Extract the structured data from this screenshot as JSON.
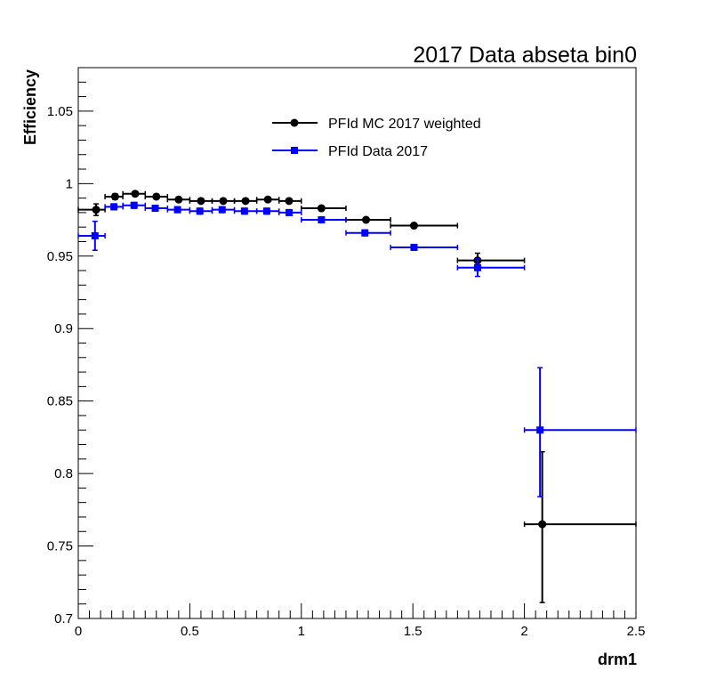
{
  "chart_data": {
    "type": "scatter",
    "title": "2017 Data abseta bin0",
    "xlabel": "drm1",
    "ylabel": "Efficiency",
    "xlim": [
      0,
      2.5
    ],
    "ylim": [
      0.7,
      1.08
    ],
    "x_ticks": [
      "0",
      "0.5",
      "1",
      "1.5",
      "2",
      "2.5"
    ],
    "y_ticks": [
      "0.7",
      "0.75",
      "0.8",
      "0.85",
      "0.9",
      "0.95",
      "1",
      "1.05"
    ],
    "x_tick_values": [
      0,
      0.5,
      1,
      1.5,
      2,
      2.5
    ],
    "y_tick_values": [
      0.7,
      0.75,
      0.8,
      0.85,
      0.9,
      0.95,
      1.0,
      1.05
    ],
    "legend_position": "top-center",
    "grid": false,
    "series": [
      {
        "name": "PFId MC 2017 weighted",
        "color": "#000000",
        "marker": "circle",
        "points": [
          {
            "x": 0.08,
            "xlo": 0.0,
            "xhi": 0.12,
            "y": 0.982,
            "ylo": 0.978,
            "yhi": 0.986
          },
          {
            "x": 0.165,
            "xlo": 0.12,
            "xhi": 0.2,
            "y": 0.991,
            "ylo": 0.989,
            "yhi": 0.993
          },
          {
            "x": 0.255,
            "xlo": 0.2,
            "xhi": 0.3,
            "y": 0.993,
            "ylo": 0.992,
            "yhi": 0.994
          },
          {
            "x": 0.35,
            "xlo": 0.3,
            "xhi": 0.4,
            "y": 0.991,
            "ylo": 0.99,
            "yhi": 0.992
          },
          {
            "x": 0.45,
            "xlo": 0.4,
            "xhi": 0.5,
            "y": 0.989,
            "ylo": 0.988,
            "yhi": 0.99
          },
          {
            "x": 0.55,
            "xlo": 0.5,
            "xhi": 0.6,
            "y": 0.988,
            "ylo": 0.987,
            "yhi": 0.989
          },
          {
            "x": 0.65,
            "xlo": 0.6,
            "xhi": 0.7,
            "y": 0.988,
            "ylo": 0.987,
            "yhi": 0.989
          },
          {
            "x": 0.75,
            "xlo": 0.7,
            "xhi": 0.8,
            "y": 0.988,
            "ylo": 0.987,
            "yhi": 0.989
          },
          {
            "x": 0.85,
            "xlo": 0.8,
            "xhi": 0.9,
            "y": 0.989,
            "ylo": 0.988,
            "yhi": 0.99
          },
          {
            "x": 0.945,
            "xlo": 0.9,
            "xhi": 1.0,
            "y": 0.988,
            "ylo": 0.987,
            "yhi": 0.989
          },
          {
            "x": 1.09,
            "xlo": 1.0,
            "xhi": 1.2,
            "y": 0.983,
            "ylo": 0.982,
            "yhi": 0.984
          },
          {
            "x": 1.29,
            "xlo": 1.2,
            "xhi": 1.4,
            "y": 0.975,
            "ylo": 0.974,
            "yhi": 0.976
          },
          {
            "x": 1.505,
            "xlo": 1.4,
            "xhi": 1.7,
            "y": 0.971,
            "ylo": 0.97,
            "yhi": 0.972
          },
          {
            "x": 1.79,
            "xlo": 1.7,
            "xhi": 2.0,
            "y": 0.947,
            "ylo": 0.943,
            "yhi": 0.952
          },
          {
            "x": 2.08,
            "xlo": 2.0,
            "xhi": 2.5,
            "y": 0.765,
            "ylo": 0.711,
            "yhi": 0.815
          }
        ]
      },
      {
        "name": "PFId Data 2017",
        "color": "#0000ff",
        "marker": "square",
        "points": [
          {
            "x": 0.075,
            "xlo": 0.0,
            "xhi": 0.12,
            "y": 0.964,
            "ylo": 0.954,
            "yhi": 0.974
          },
          {
            "x": 0.16,
            "xlo": 0.12,
            "xhi": 0.2,
            "y": 0.984,
            "ylo": 0.982,
            "yhi": 0.986
          },
          {
            "x": 0.25,
            "xlo": 0.2,
            "xhi": 0.3,
            "y": 0.985,
            "ylo": 0.983,
            "yhi": 0.987
          },
          {
            "x": 0.345,
            "xlo": 0.3,
            "xhi": 0.4,
            "y": 0.983,
            "ylo": 0.981,
            "yhi": 0.985
          },
          {
            "x": 0.445,
            "xlo": 0.4,
            "xhi": 0.5,
            "y": 0.982,
            "ylo": 0.98,
            "yhi": 0.984
          },
          {
            "x": 0.545,
            "xlo": 0.5,
            "xhi": 0.6,
            "y": 0.981,
            "ylo": 0.979,
            "yhi": 0.983
          },
          {
            "x": 0.645,
            "xlo": 0.6,
            "xhi": 0.7,
            "y": 0.982,
            "ylo": 0.98,
            "yhi": 0.984
          },
          {
            "x": 0.745,
            "xlo": 0.7,
            "xhi": 0.8,
            "y": 0.981,
            "ylo": 0.979,
            "yhi": 0.983
          },
          {
            "x": 0.845,
            "xlo": 0.8,
            "xhi": 0.9,
            "y": 0.981,
            "ylo": 0.979,
            "yhi": 0.983
          },
          {
            "x": 0.945,
            "xlo": 0.9,
            "xhi": 1.0,
            "y": 0.98,
            "ylo": 0.978,
            "yhi": 0.982
          },
          {
            "x": 1.09,
            "xlo": 1.0,
            "xhi": 1.2,
            "y": 0.975,
            "ylo": 0.973,
            "yhi": 0.977
          },
          {
            "x": 1.285,
            "xlo": 1.2,
            "xhi": 1.4,
            "y": 0.966,
            "ylo": 0.964,
            "yhi": 0.968
          },
          {
            "x": 1.505,
            "xlo": 1.4,
            "xhi": 1.7,
            "y": 0.956,
            "ylo": 0.954,
            "yhi": 0.958
          },
          {
            "x": 1.79,
            "xlo": 1.7,
            "xhi": 2.0,
            "y": 0.942,
            "ylo": 0.936,
            "yhi": 0.948
          },
          {
            "x": 2.07,
            "xlo": 2.0,
            "xhi": 2.5,
            "y": 0.83,
            "ylo": 0.784,
            "yhi": 0.873
          }
        ]
      }
    ]
  }
}
